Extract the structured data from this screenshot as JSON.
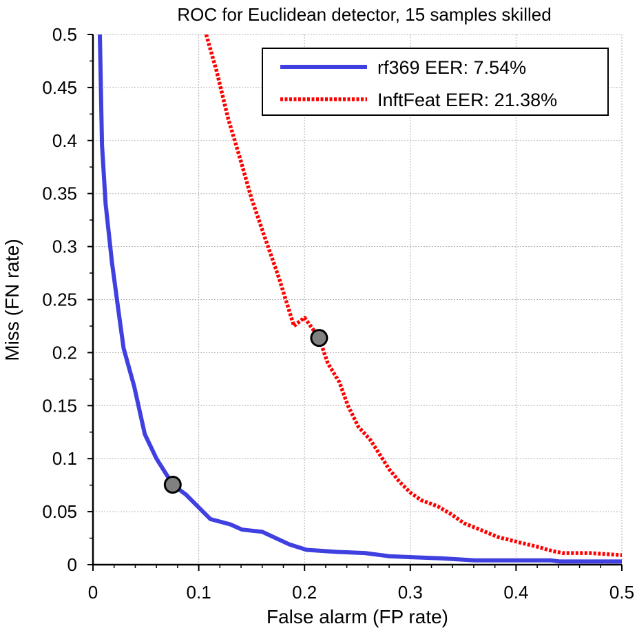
{
  "chart_data": {
    "type": "line",
    "title": "ROC for Euclidean detector, 15 samples skilled",
    "xlabel": "False alarm (FP rate)",
    "ylabel": "Miss (FN rate)",
    "xlim": [
      0,
      0.5
    ],
    "ylim": [
      0,
      0.5
    ],
    "xticks": [
      0,
      0.1,
      0.2,
      0.3,
      0.4,
      0.5
    ],
    "xtick_labels": [
      "0",
      "0.1",
      "0.2",
      "0.3",
      "0.4",
      "0.5"
    ],
    "yticks": [
      0,
      0.05,
      0.1,
      0.15,
      0.2,
      0.25,
      0.3,
      0.35,
      0.4,
      0.45,
      0.5
    ],
    "ytick_labels": [
      "0",
      "0.05",
      "0.1",
      "0.15",
      "0.2",
      "0.25",
      "0.3",
      "0.35",
      "0.4",
      "0.45",
      "0.5"
    ],
    "grid": true,
    "legend_position": "top-right",
    "series": [
      {
        "name": "rf369 EER: 7.54%",
        "color": "#4040e0",
        "style": "solid",
        "eer": 0.0754,
        "x": [
          0.0065,
          0.0085,
          0.012,
          0.018,
          0.024,
          0.029,
          0.039,
          0.049,
          0.06,
          0.072,
          0.0754,
          0.088,
          0.101,
          0.111,
          0.13,
          0.141,
          0.16,
          0.186,
          0.202,
          0.231,
          0.257,
          0.28,
          0.303,
          0.329,
          0.361,
          0.433,
          0.441,
          0.5
        ],
        "y": [
          0.5,
          0.396,
          0.34,
          0.285,
          0.24,
          0.204,
          0.168,
          0.123,
          0.1,
          0.081,
          0.0754,
          0.066,
          0.053,
          0.043,
          0.038,
          0.033,
          0.031,
          0.019,
          0.014,
          0.012,
          0.011,
          0.008,
          0.007,
          0.006,
          0.004,
          0.004,
          0.003,
          0.003
        ]
      },
      {
        "name": "InftFeat EER: 21.38%",
        "color": "#ff0000",
        "style": "dotted",
        "eer": 0.2138,
        "x": [
          0.107,
          0.117,
          0.128,
          0.14,
          0.15,
          0.162,
          0.176,
          0.19,
          0.2,
          0.2138,
          0.222,
          0.233,
          0.241,
          0.251,
          0.262,
          0.271,
          0.28,
          0.29,
          0.3,
          0.31,
          0.326,
          0.338,
          0.351,
          0.366,
          0.383,
          0.403,
          0.42,
          0.434,
          0.444,
          0.47,
          0.5
        ],
        "y": [
          0.5,
          0.465,
          0.42,
          0.38,
          0.345,
          0.31,
          0.27,
          0.225,
          0.233,
          0.2138,
          0.19,
          0.172,
          0.15,
          0.13,
          0.118,
          0.104,
          0.09,
          0.078,
          0.068,
          0.061,
          0.055,
          0.048,
          0.039,
          0.033,
          0.026,
          0.021,
          0.017,
          0.013,
          0.011,
          0.011,
          0.009
        ]
      }
    ],
    "markers": [
      {
        "name": "rf369 EER point",
        "x": 0.0754,
        "y": 0.0754,
        "fill": "#808080",
        "stroke": "#000000"
      },
      {
        "name": "InftFeat EER point",
        "x": 0.2138,
        "y": 0.2138,
        "fill": "#808080",
        "stroke": "#000000"
      }
    ],
    "legend": [
      {
        "label": "rf369 EER: 7.54%",
        "color": "#4040e0",
        "style": "solid"
      },
      {
        "label": "InftFeat EER: 21.38%",
        "color": "#ff0000",
        "style": "dotted"
      }
    ]
  }
}
